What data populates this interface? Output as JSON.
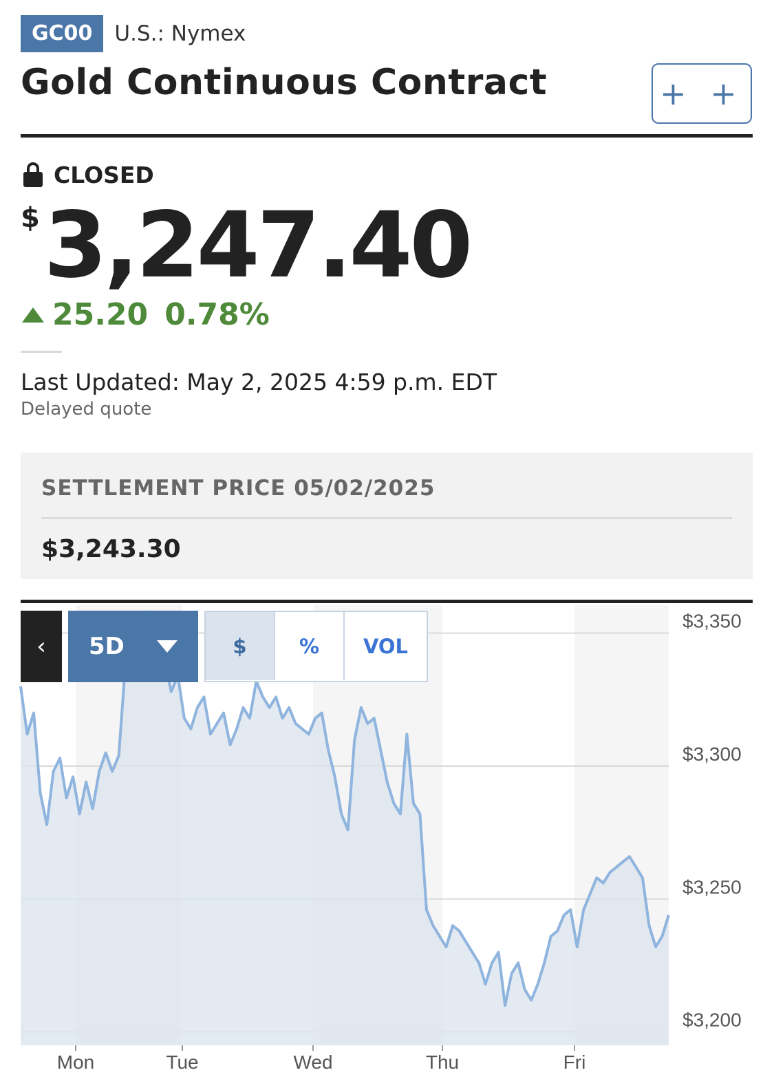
{
  "header": {
    "ticker": "GC00",
    "exchange": "U.S.: Nymex",
    "title": "Gold Continuous Contract",
    "watch_button": "+ +"
  },
  "quote": {
    "status": "CLOSED",
    "currency_symbol": "$",
    "price": "3,247.40",
    "change": "25.20",
    "change_percent": "0.78%",
    "direction": "up",
    "last_updated": "Last Updated: May 2, 2025 4:59 p.m. EDT",
    "delayed": "Delayed quote"
  },
  "settlement": {
    "label": "SETTLEMENT PRICE 05/02/2025",
    "value": "$3,243.30"
  },
  "controls": {
    "back": "‹",
    "range": "5D",
    "modes": [
      "$",
      "%",
      "VOL"
    ],
    "active_mode": "$"
  },
  "colors": {
    "accent": "#4a76a8",
    "positive": "#4e8a3a",
    "line": "#8fb4de",
    "area": "#dce5ef"
  },
  "chart_data": {
    "type": "area",
    "x_tick_labels": [
      "Mon",
      "Tue",
      "Wed",
      "Thu",
      "Fri"
    ],
    "y_tick_labels": [
      "$3,350",
      "$3,300",
      "$3,250",
      "$3,200"
    ],
    "y_ticks": [
      3350,
      3300,
      3250,
      3200
    ],
    "ylim": [
      3195,
      3360
    ],
    "grid": true,
    "series": [
      {
        "x": [
          0.0,
          0.05,
          0.1,
          0.15,
          0.2,
          0.25,
          0.3,
          0.35,
          0.4,
          0.45,
          0.5,
          0.55,
          0.6,
          0.65,
          0.7,
          0.75,
          0.8,
          0.85,
          0.9,
          0.95,
          1.0,
          1.05,
          1.1,
          1.15,
          1.2,
          1.25,
          1.3,
          1.35,
          1.4,
          1.45,
          1.5,
          1.55,
          1.6,
          1.65,
          1.7,
          1.75,
          1.8,
          1.85,
          1.9,
          1.95,
          2.0,
          2.05,
          2.1,
          2.15,
          2.2,
          2.25,
          2.3,
          2.35,
          2.4,
          2.45,
          2.5,
          2.55,
          2.6,
          2.65,
          2.7,
          2.75,
          2.8,
          2.85,
          2.9,
          2.95,
          3.0,
          3.05,
          3.1,
          3.15,
          3.2,
          3.25,
          3.3,
          3.35,
          3.4,
          3.45,
          3.5,
          3.55,
          3.6,
          3.65,
          3.7,
          3.75,
          3.8,
          3.85,
          3.9,
          3.95,
          4.0,
          4.05,
          4.1,
          4.15,
          4.2,
          4.25,
          4.3,
          4.35,
          4.4,
          4.45,
          4.5,
          4.55,
          4.6,
          4.65,
          4.7,
          4.75,
          4.8,
          4.85,
          4.9,
          4.95
        ],
        "values": [
          3330,
          3312,
          3320,
          3290,
          3278,
          3298,
          3303,
          3288,
          3296,
          3282,
          3294,
          3284,
          3298,
          3305,
          3298,
          3304,
          3338,
          3332,
          3343,
          3358,
          3357,
          3344,
          3340,
          3328,
          3334,
          3318,
          3314,
          3322,
          3326,
          3312,
          3316,
          3320,
          3308,
          3314,
          3322,
          3318,
          3332,
          3326,
          3322,
          3326,
          3318,
          3322,
          3316,
          3314,
          3312,
          3318,
          3320,
          3306,
          3296,
          3282,
          3276,
          3310,
          3322,
          3316,
          3318,
          3306,
          3294,
          3286,
          3282,
          3312,
          3286,
          3282,
          3246,
          3240,
          3236,
          3232,
          3240,
          3238,
          3234,
          3230,
          3226,
          3218,
          3226,
          3230,
          3210,
          3222,
          3226,
          3216,
          3212,
          3218,
          3226,
          3236,
          3238,
          3244,
          3246,
          3232,
          3246,
          3252,
          3258,
          3256,
          3260,
          3262,
          3264,
          3266,
          3262,
          3258,
          3240,
          3232,
          3236,
          3244
        ]
      }
    ]
  }
}
